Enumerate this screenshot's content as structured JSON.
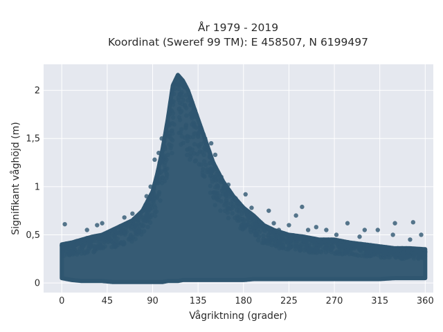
{
  "chart_data": {
    "type": "scatter",
    "title_lines": [
      "År 1979 - 2019",
      "Koordinat (Sweref 99 TM): E 458507, N 6199497"
    ],
    "xlabel": "Vågriktning (grader)",
    "ylabel": "Signifikant våghöjd (m)",
    "xlim": [
      -18,
      368
    ],
    "ylim": [
      -0.1,
      2.27
    ],
    "x_ticks": [
      0,
      45,
      90,
      135,
      180,
      225,
      270,
      315,
      360
    ],
    "x_tick_labels": [
      "0",
      "45",
      "90",
      "135",
      "180",
      "225",
      "270",
      "315",
      "360"
    ],
    "y_ticks": [
      0,
      0.5,
      1,
      1.5,
      2
    ],
    "y_tick_labels": [
      "0",
      "0,5",
      "1",
      "1,5",
      "2"
    ],
    "grid": true,
    "background": "#e5e8ef",
    "marker_color": "#2f5670",
    "series": [
      {
        "envelope": {
          "x": [
            0,
            10,
            20,
            30,
            40,
            50,
            60,
            70,
            80,
            90,
            95,
            100,
            105,
            110,
            115,
            120,
            125,
            130,
            135,
            140,
            145,
            150,
            160,
            170,
            180,
            190,
            200,
            210,
            225,
            240,
            255,
            270,
            285,
            300,
            315,
            330,
            345,
            360
          ],
          "upper": [
            0.4,
            0.42,
            0.45,
            0.48,
            0.5,
            0.55,
            0.6,
            0.65,
            0.75,
            0.95,
            1.15,
            1.4,
            1.7,
            2.05,
            2.16,
            2.1,
            2.0,
            1.85,
            1.7,
            1.55,
            1.4,
            1.25,
            1.05,
            0.9,
            0.78,
            0.7,
            0.6,
            0.55,
            0.5,
            0.48,
            0.45,
            0.45,
            0.42,
            0.4,
            0.38,
            0.36,
            0.36,
            0.35
          ],
          "lower": [
            0.05,
            0.03,
            0.02,
            0.02,
            0.02,
            0.01,
            0.01,
            0.01,
            0.01,
            0.01,
            0.01,
            0.01,
            0.02,
            0.02,
            0.02,
            0.03,
            0.03,
            0.03,
            0.03,
            0.03,
            0.03,
            0.03,
            0.03,
            0.03,
            0.03,
            0.04,
            0.04,
            0.04,
            0.04,
            0.04,
            0.04,
            0.04,
            0.04,
            0.04,
            0.04,
            0.05,
            0.05,
            0.05
          ]
        },
        "outliers": [
          {
            "x": 3,
            "y": 0.61
          },
          {
            "x": 25,
            "y": 0.55
          },
          {
            "x": 35,
            "y": 0.6
          },
          {
            "x": 40,
            "y": 0.62
          },
          {
            "x": 62,
            "y": 0.68
          },
          {
            "x": 70,
            "y": 0.72
          },
          {
            "x": 84,
            "y": 0.9
          },
          {
            "x": 88,
            "y": 1.0
          },
          {
            "x": 92,
            "y": 1.28
          },
          {
            "x": 96,
            "y": 1.35
          },
          {
            "x": 99,
            "y": 1.5
          },
          {
            "x": 142,
            "y": 1.5
          },
          {
            "x": 148,
            "y": 1.45
          },
          {
            "x": 152,
            "y": 1.33
          },
          {
            "x": 158,
            "y": 1.1
          },
          {
            "x": 165,
            "y": 1.02
          },
          {
            "x": 172,
            "y": 0.88
          },
          {
            "x": 182,
            "y": 0.92
          },
          {
            "x": 188,
            "y": 0.78
          },
          {
            "x": 205,
            "y": 0.75
          },
          {
            "x": 210,
            "y": 0.62
          },
          {
            "x": 215,
            "y": 0.55
          },
          {
            "x": 225,
            "y": 0.6
          },
          {
            "x": 232,
            "y": 0.7
          },
          {
            "x": 238,
            "y": 0.79
          },
          {
            "x": 244,
            "y": 0.55
          },
          {
            "x": 252,
            "y": 0.58
          },
          {
            "x": 262,
            "y": 0.55
          },
          {
            "x": 272,
            "y": 0.5
          },
          {
            "x": 283,
            "y": 0.62
          },
          {
            "x": 295,
            "y": 0.48
          },
          {
            "x": 300,
            "y": 0.55
          },
          {
            "x": 313,
            "y": 0.55
          },
          {
            "x": 328,
            "y": 0.5
          },
          {
            "x": 330,
            "y": 0.62
          },
          {
            "x": 345,
            "y": 0.45
          },
          {
            "x": 348,
            "y": 0.63
          },
          {
            "x": 356,
            "y": 0.5
          }
        ]
      }
    ]
  }
}
